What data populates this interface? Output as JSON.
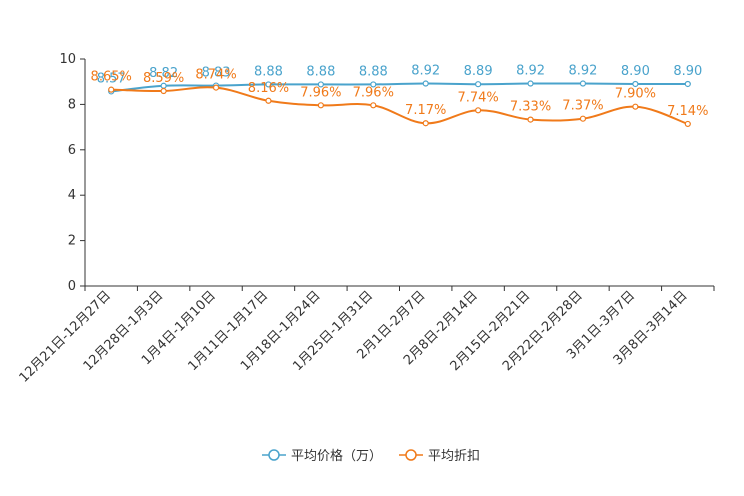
{
  "chart_data": {
    "type": "line",
    "categories": [
      "12月21日-12月27日",
      "12月28日-1月3日",
      "1月4日-1月10日",
      "1月11日-1月17日",
      "1月18日-1月24日",
      "1月25日-1月31日",
      "2月1日-2月7日",
      "2月8日-2月14日",
      "2月15日-2月21日",
      "2月22日-2月28日",
      "3月1日-3月7日",
      "3月8日-3月14日"
    ],
    "ylim": [
      0,
      10
    ],
    "yticks": [
      "0",
      "2",
      "4",
      "6",
      "8",
      "10"
    ],
    "series": [
      {
        "name": "平均价格（万）",
        "color": "#4aa3cc",
        "values": [
          8.57,
          8.82,
          8.83,
          8.88,
          8.88,
          8.88,
          8.92,
          8.89,
          8.92,
          8.92,
          8.9,
          8.9
        ],
        "labels": [
          "8.57",
          "8.82",
          "8.83",
          "8.88",
          "8.88",
          "8.88",
          "8.92",
          "8.89",
          "8.92",
          "8.92",
          "8.90",
          "8.90"
        ]
      },
      {
        "name": "平均折扣",
        "color": "#f07a1a",
        "values": [
          8.65,
          8.59,
          8.74,
          8.16,
          7.96,
          7.96,
          7.17,
          7.74,
          7.33,
          7.37,
          7.9,
          7.14
        ],
        "labels": [
          "8.65%",
          "8.59%",
          "8.74%",
          "8.16%",
          "7.96%",
          "7.96%",
          "7.17%",
          "7.74%",
          "7.33%",
          "7.37%",
          "7.90%",
          "7.14%"
        ]
      }
    ]
  }
}
